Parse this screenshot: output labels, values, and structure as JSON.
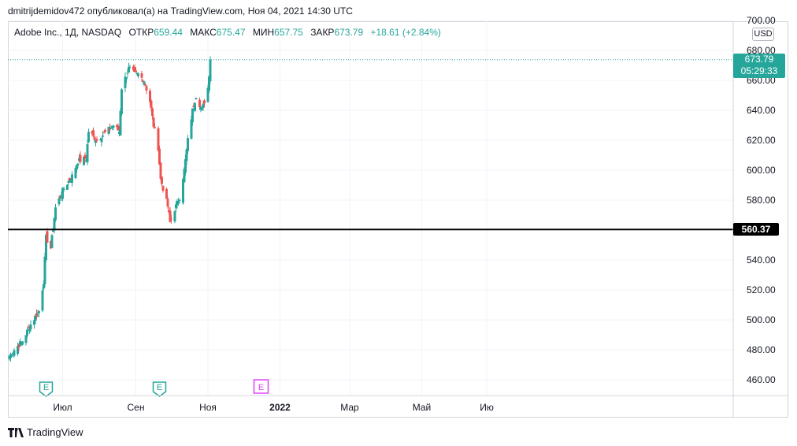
{
  "publish_line": "dmitrijdemidov472 опубликовал(а) на TradingView.com, Ноя 04, 2021 14:30 UTC",
  "legend": {
    "symbol": "Adobe Inc., 1Д, NASDAQ",
    "open_label": "ОТКР",
    "open": "659.44",
    "high_label": "МАКС",
    "high": "675.47",
    "low_label": "МИН",
    "low": "657.75",
    "close_label": "ЗАКР",
    "close": "673.79",
    "change": "+18.61 (+2.84%)"
  },
  "currency": "USD",
  "last_price": {
    "price": "673.79",
    "countdown": "05:29:33"
  },
  "level_label": "560.37",
  "footer_brand": "TradingView",
  "colors": {
    "up": "#26a69a",
    "down": "#ef5350",
    "level": "#000000",
    "grid": "#f0f3fa",
    "earnings_past": "#26a69a",
    "earnings_future": "#e040fb"
  },
  "chart_data": {
    "type": "candlestick",
    "y_ticks": [
      460,
      480,
      500,
      520,
      540,
      560,
      580,
      600,
      620,
      640,
      660,
      680,
      700
    ],
    "y_tick_labels": [
      "460.00",
      "480.00",
      "500.00",
      "520.00",
      "540.00",
      "560.00",
      "580.00",
      "600.00",
      "620.00",
      "640.00",
      "660.00",
      "680.00",
      "700.00"
    ],
    "x_tick_labels": [
      "Июл",
      "Сен",
      "Ноя",
      "2022",
      "Мар",
      "Май",
      "Ию"
    ],
    "grid": true,
    "horizontal_level": 560.37,
    "last_close": 673.79,
    "earnings_markers": [
      {
        "label": "E",
        "date": "2021-06-17",
        "status": "past"
      },
      {
        "label": "E",
        "date": "2021-09-21",
        "status": "past"
      },
      {
        "label": "E",
        "date": "2021-12-16",
        "status": "upcoming"
      }
    ],
    "close_path": [
      [
        "2021-05-17",
        476
      ],
      [
        "2021-05-21",
        480
      ],
      [
        "2021-05-28",
        486
      ],
      [
        "2021-06-04",
        497
      ],
      [
        "2021-06-11",
        506
      ],
      [
        "2021-06-15",
        526
      ],
      [
        "2021-06-17",
        555
      ],
      [
        "2021-06-21",
        548
      ],
      [
        "2021-06-25",
        575
      ],
      [
        "2021-07-02",
        588
      ],
      [
        "2021-07-09",
        596
      ],
      [
        "2021-07-14",
        606
      ],
      [
        "2021-07-21",
        608
      ],
      [
        "2021-07-23",
        626
      ],
      [
        "2021-07-30",
        620
      ],
      [
        "2021-08-06",
        625
      ],
      [
        "2021-08-13",
        630
      ],
      [
        "2021-08-18",
        626
      ],
      [
        "2021-08-20",
        655
      ],
      [
        "2021-08-26",
        668
      ],
      [
        "2021-08-31",
        664
      ],
      [
        "2021-09-03",
        664
      ],
      [
        "2021-09-08",
        660
      ],
      [
        "2021-09-13",
        646
      ],
      [
        "2021-09-16",
        630
      ],
      [
        "2021-09-20",
        615
      ],
      [
        "2021-09-22",
        594
      ],
      [
        "2021-09-28",
        576
      ],
      [
        "2021-09-30",
        565
      ],
      [
        "2021-10-04",
        574
      ],
      [
        "2021-10-08",
        582
      ],
      [
        "2021-10-12",
        600
      ],
      [
        "2021-10-15",
        620
      ],
      [
        "2021-10-19",
        640
      ],
      [
        "2021-10-22",
        650
      ],
      [
        "2021-10-27",
        640
      ],
      [
        "2021-11-01",
        655
      ],
      [
        "2021-11-03",
        673.79
      ]
    ]
  }
}
